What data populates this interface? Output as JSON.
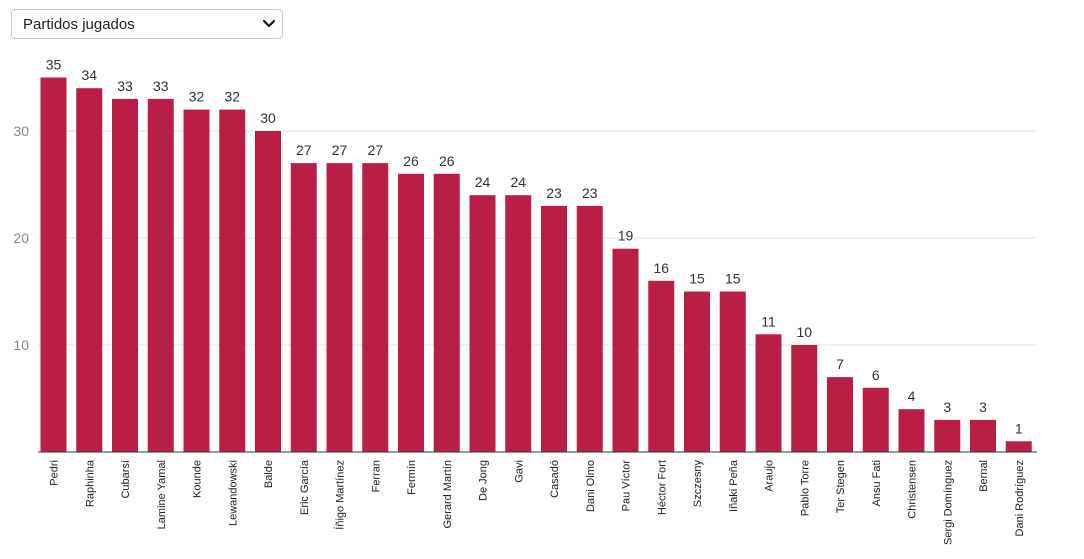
{
  "dropdown": {
    "selected": "Partidos jugados",
    "icon": "chevron-down-icon"
  },
  "chart_data": {
    "type": "bar",
    "title": "",
    "xlabel": "",
    "ylabel": "",
    "ylim": [
      0,
      36
    ],
    "yticks": [
      10,
      20,
      30
    ],
    "grid": true,
    "bar_color": "#b91f44",
    "categories": [
      "Pedri",
      "Raphinha",
      "Cubarsí",
      "Lamine Yamal",
      "Kounde",
      "Lewandowski",
      "Balde",
      "Eric García",
      "Íñigo Martínez",
      "Ferran",
      "Fermín",
      "Gerard Martín",
      "De Jong",
      "Gavi",
      "Casadó",
      "Dani Olmo",
      "Pau Víctor",
      "Héctor Fort",
      "Szczesny",
      "Iñaki Peña",
      "Araujo",
      "Pablo Torre",
      "Ter Stegen",
      "Ansu Fati",
      "Christensen",
      "Sergi Domínguez",
      "Bernal",
      "Dani Rodríguez"
    ],
    "values": [
      35,
      34,
      33,
      33,
      32,
      32,
      30,
      27,
      27,
      27,
      26,
      26,
      24,
      24,
      23,
      23,
      19,
      16,
      15,
      15,
      11,
      10,
      7,
      6,
      4,
      3,
      3,
      1
    ]
  }
}
